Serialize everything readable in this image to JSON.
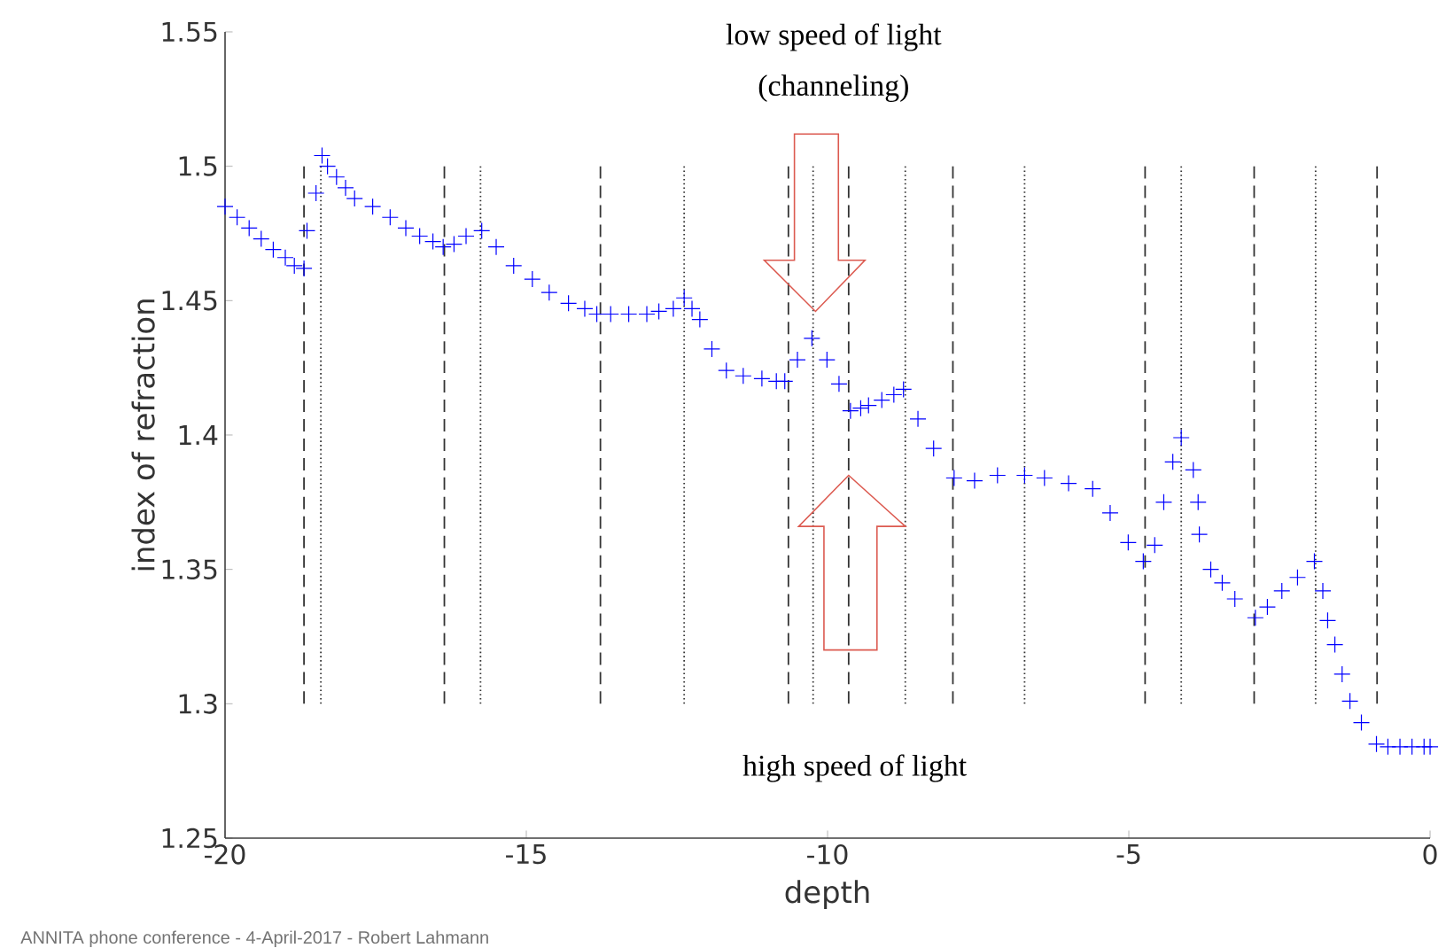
{
  "chart_data": {
    "type": "scatter",
    "xlabel": "depth",
    "ylabel": "index of refraction",
    "xlim": [
      -20,
      0
    ],
    "ylim": [
      1.25,
      1.55
    ],
    "xticks": [
      -20,
      -15,
      -10,
      -5,
      0
    ],
    "yticks": [
      1.25,
      1.3,
      1.35,
      1.4,
      1.45,
      1.5,
      1.55
    ],
    "marker": "cross",
    "annotations": [
      "low speed of light",
      "(channeling)",
      "high speed of light",
      "ANNITA phone conference - 4-April-2017 - Robert Lahmann"
    ],
    "series": [
      {
        "color": "#0000ff",
        "x": [
          -20,
          -19.8,
          -19.6,
          -19.4,
          -19.2,
          -19.0,
          -18.85,
          -18.69,
          -18.64,
          -18.49,
          -18.39,
          -18.3,
          -18.15,
          -18.0,
          -17.85,
          -17.55,
          -17.26,
          -17.0,
          -16.77,
          -16.55,
          -16.38,
          -16.2,
          -16.0,
          -15.74,
          -15.5,
          -15.21,
          -14.9,
          -14.62,
          -14.3,
          -14.03,
          -13.83,
          -13.6,
          -13.3,
          -13.0,
          -12.8,
          -12.56,
          -12.38,
          -12.25,
          -12.12,
          -11.92,
          -11.68,
          -11.4,
          -11.09,
          -10.85,
          -10.71,
          -10.5,
          -10.26,
          -10.01,
          -9.81,
          -9.62,
          -9.45,
          -9.32,
          -9.1,
          -8.9,
          -8.74,
          -8.5,
          -8.24,
          -7.9,
          -7.56,
          -7.18,
          -6.73,
          -6.4,
          -6.0,
          -5.6,
          -5.31,
          -5.01,
          -4.76,
          -4.57,
          -4.42,
          -4.27,
          -4.13,
          -3.93,
          -3.85,
          -3.83,
          -3.64,
          -3.45,
          -3.24,
          -2.9,
          -2.7,
          -2.46,
          -2.2,
          -1.92,
          -1.78,
          -1.7,
          -1.58,
          -1.46,
          -1.33,
          -1.14,
          -0.89,
          -0.7,
          -0.5,
          -0.3,
          -0.1,
          0
        ],
        "values": [
          1.485,
          1.481,
          1.477,
          1.473,
          1.469,
          1.466,
          1.463,
          1.462,
          1.476,
          1.49,
          1.504,
          1.5,
          1.496,
          1.492,
          1.488,
          1.485,
          1.481,
          1.477,
          1.474,
          1.472,
          1.47,
          1.471,
          1.474,
          1.476,
          1.47,
          1.463,
          1.458,
          1.453,
          1.449,
          1.447,
          1.445,
          1.445,
          1.445,
          1.445,
          1.446,
          1.447,
          1.451,
          1.447,
          1.443,
          1.432,
          1.424,
          1.422,
          1.421,
          1.42,
          1.42,
          1.428,
          1.436,
          1.428,
          1.419,
          1.409,
          1.41,
          1.411,
          1.413,
          1.415,
          1.417,
          1.406,
          1.395,
          1.384,
          1.383,
          1.385,
          1.385,
          1.384,
          1.382,
          1.38,
          1.371,
          1.36,
          1.353,
          1.359,
          1.375,
          1.39,
          1.399,
          1.387,
          1.375,
          1.363,
          1.35,
          1.345,
          1.339,
          1.332,
          1.336,
          1.342,
          1.347,
          1.353,
          1.342,
          1.331,
          1.322,
          1.311,
          1.301,
          1.293,
          1.285,
          1.284,
          1.284,
          1.284,
          1.284,
          1.284
        ]
      },
      {
        "type": "line",
        "color": "#333333",
        "line_style": "dashed",
        "marker": "none",
        "x": [
          -18.69,
          -18.69
        ],
        "values": [
          1.3,
          1.5
        ]
      },
      {
        "type": "line",
        "color": "#333333",
        "line_style": "dotted",
        "marker": "none",
        "x": [
          -18.41,
          -18.41
        ],
        "values": [
          1.3,
          1.5
        ]
      },
      {
        "type": "line",
        "color": "#333333",
        "line_style": "dashed",
        "marker": "none",
        "x": [
          -16.36,
          -16.36
        ],
        "values": [
          1.3,
          1.5
        ]
      },
      {
        "type": "line",
        "color": "#333333",
        "line_style": "dotted",
        "marker": "none",
        "x": [
          -15.76,
          -15.76
        ],
        "values": [
          1.3,
          1.5
        ]
      },
      {
        "type": "line",
        "color": "#333333",
        "line_style": "dashed",
        "marker": "none",
        "x": [
          -13.77,
          -13.77
        ],
        "values": [
          1.3,
          1.5
        ]
      },
      {
        "type": "line",
        "color": "#333333",
        "line_style": "dotted",
        "marker": "none",
        "x": [
          -12.38,
          -12.38
        ],
        "values": [
          1.3,
          1.5
        ]
      },
      {
        "type": "line",
        "color": "#333333",
        "line_style": "dashed",
        "marker": "none",
        "x": [
          -10.65,
          -10.65
        ],
        "values": [
          1.3,
          1.5
        ]
      },
      {
        "type": "line",
        "color": "#333333",
        "line_style": "dotted",
        "marker": "none",
        "x": [
          -10.24,
          -10.24
        ],
        "values": [
          1.3,
          1.5
        ]
      },
      {
        "type": "line",
        "color": "#333333",
        "line_style": "dashed",
        "marker": "none",
        "x": [
          -9.65,
          -9.65
        ],
        "values": [
          1.3,
          1.5
        ]
      },
      {
        "type": "line",
        "color": "#333333",
        "line_style": "dotted",
        "marker": "none",
        "x": [
          -8.71,
          -8.71
        ],
        "values": [
          1.3,
          1.5
        ]
      },
      {
        "type": "line",
        "color": "#333333",
        "line_style": "dashed",
        "marker": "none",
        "x": [
          -7.92,
          -7.92
        ],
        "values": [
          1.3,
          1.5
        ]
      },
      {
        "type": "line",
        "color": "#333333",
        "line_style": "dotted",
        "marker": "none",
        "x": [
          -6.73,
          -6.73
        ],
        "values": [
          1.3,
          1.5
        ]
      },
      {
        "type": "line",
        "color": "#333333",
        "line_style": "dashed",
        "marker": "none",
        "x": [
          -4.73,
          -4.73
        ],
        "values": [
          1.3,
          1.5
        ]
      },
      {
        "type": "line",
        "color": "#333333",
        "line_style": "dotted",
        "marker": "none",
        "x": [
          -4.13,
          -4.13
        ],
        "values": [
          1.3,
          1.5
        ]
      },
      {
        "type": "line",
        "color": "#333333",
        "line_style": "dashed",
        "marker": "none",
        "x": [
          -2.92,
          -2.92
        ],
        "values": [
          1.3,
          1.5
        ]
      },
      {
        "type": "line",
        "color": "#333333",
        "line_style": "dotted",
        "marker": "none",
        "x": [
          -1.9,
          -1.9
        ],
        "values": [
          1.3,
          1.5
        ]
      },
      {
        "type": "line",
        "color": "#333333",
        "line_style": "dashed",
        "marker": "none",
        "x": [
          -0.88,
          -0.88
        ],
        "values": [
          1.3,
          1.5
        ]
      }
    ]
  }
}
